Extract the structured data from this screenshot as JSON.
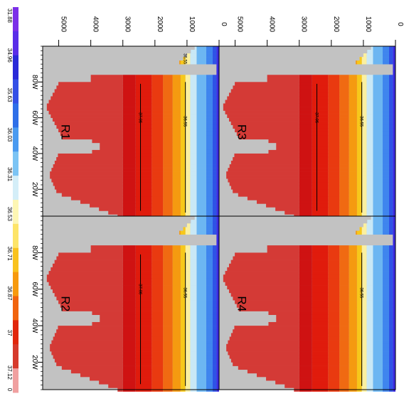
{
  "colors": {
    "land": "#c2c2c2",
    "frame": "#000000",
    "contour": "#000000"
  },
  "colorbar": {
    "labels": [
      "31.88",
      "34.96",
      "35.63",
      "36.03",
      "36.31",
      "36.53",
      "36.71",
      "36.87",
      "37",
      "37.12"
    ],
    "bottom_label": "0",
    "colors": [
      "#7b2fe8",
      "#5a2ee8",
      "#2a2ad8",
      "#3450e6",
      "#2f6fe8",
      "#4a9af0",
      "#7cc4f4",
      "#d4eef8",
      "#fdf6b4",
      "#fde468",
      "#f9c21e",
      "#f79a0e",
      "#f1640e",
      "#e1260c",
      "#d63a2c",
      "#f0a0a0"
    ]
  },
  "chart_data": {
    "type": "heatmap",
    "description_units": {
      "depth": "m",
      "longitude": "degrees"
    },
    "y_axis_ticks": [
      "0",
      "1000",
      "2000",
      "3000",
      "4000",
      "5000"
    ],
    "x_axis_ticks": [
      "80W",
      "60W",
      "40W",
      "20W"
    ],
    "depth_range": [
      0,
      5500
    ],
    "longitude_range": [
      -100,
      -5
    ],
    "contour_levels": [
      "36.55",
      "37.06"
    ],
    "panels": [
      {
        "label": "R1",
        "upper_contour": "36.55",
        "lower_contour": "37.06",
        "top_contour_label": "36.55"
      },
      {
        "label": "R2",
        "upper_contour": "36.55",
        "lower_contour": "37.06"
      },
      {
        "label": "R3",
        "upper_contour": "36.55",
        "lower_contour": "37.06"
      },
      {
        "label": "R4",
        "upper_contour": "36.55"
      }
    ]
  }
}
